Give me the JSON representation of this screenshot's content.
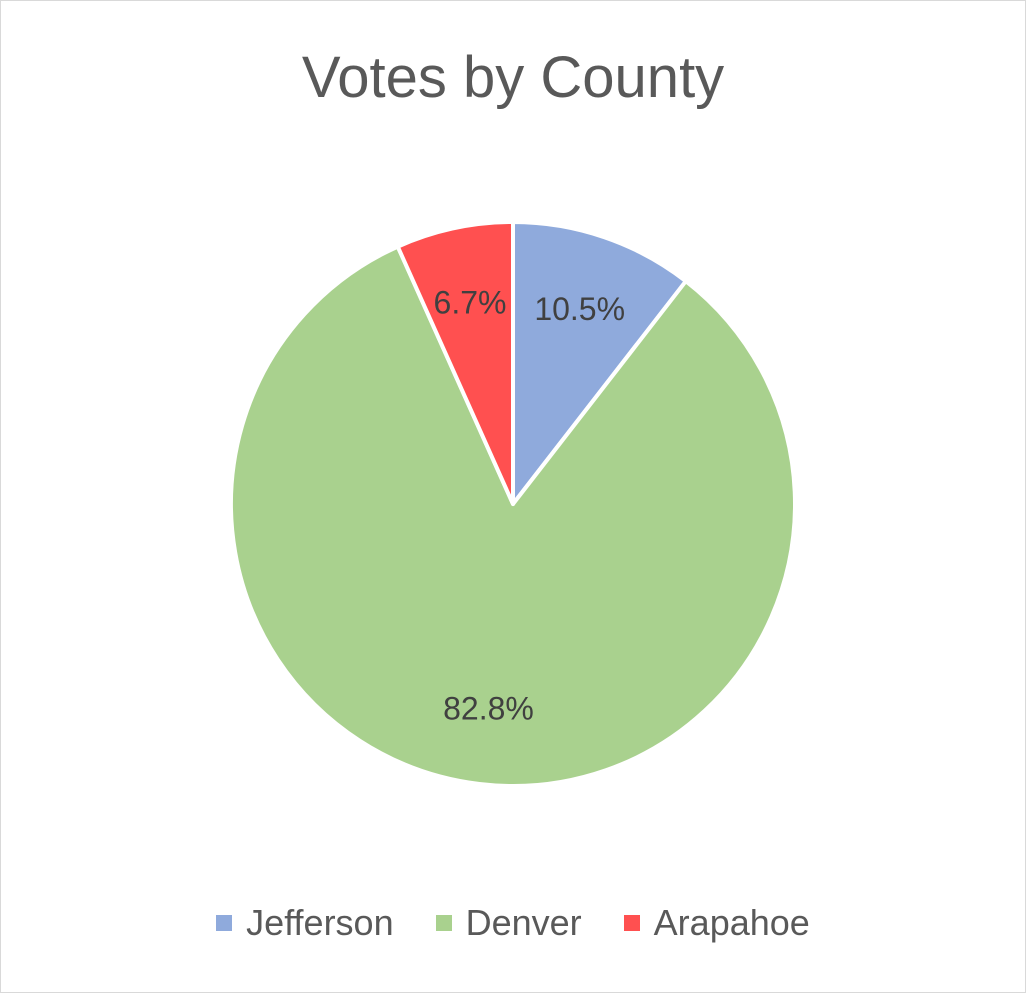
{
  "chart_data": {
    "type": "pie",
    "title": "Votes by County",
    "categories": [
      "Jefferson",
      "Denver",
      "Arapahoe"
    ],
    "values": [
      10.5,
      82.8,
      6.7
    ],
    "data_labels": [
      "10.5%",
      "82.8%",
      "6.7%"
    ],
    "colors": [
      "#8faadc",
      "#a9d18e",
      "#ff5050"
    ],
    "legend_position": "bottom",
    "start_angle": "12 o'clock, clockwise"
  }
}
